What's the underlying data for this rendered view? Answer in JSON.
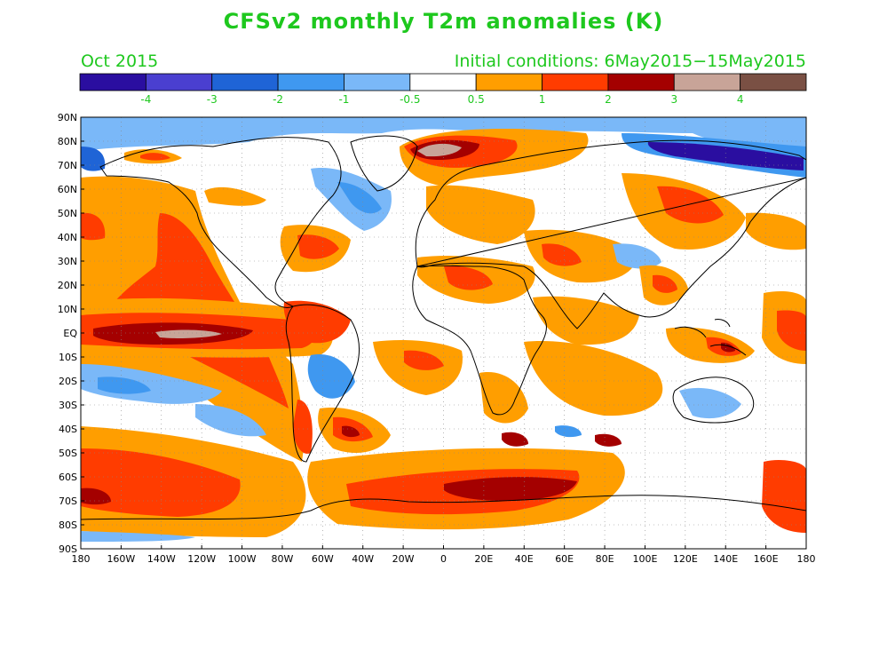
{
  "title": "CFSv2 monthly T2m anomalies (K)",
  "month_label": "Oct 2015",
  "init_label": "Initial conditions: 6May2015−15May2015",
  "legend": {
    "colors": [
      "#2a0ea0",
      "#4a3fd0",
      "#1f64d6",
      "#3f98f0",
      "#7ab8f8",
      "#ffffff",
      "#ff9e00",
      "#ff3c00",
      "#a40000",
      "#c8a498",
      "#7a5044"
    ],
    "labels": [
      "-4",
      "-3",
      "-2",
      "-1",
      "-0.5",
      "0.5",
      "1",
      "2",
      "3",
      "4"
    ]
  },
  "map": {
    "lat_labels": [
      "90N",
      "80N",
      "70N",
      "60N",
      "50N",
      "40N",
      "30N",
      "20N",
      "10N",
      "EQ",
      "10S",
      "20S",
      "30S",
      "40S",
      "50S",
      "60S",
      "70S",
      "80S",
      "90S"
    ],
    "lon_labels": [
      "180",
      "160W",
      "140W",
      "120W",
      "100W",
      "80W",
      "60W",
      "40W",
      "20W",
      "0",
      "20E",
      "40E",
      "60E",
      "80E",
      "100E",
      "120E",
      "140E",
      "160E",
      "180"
    ]
  }
}
